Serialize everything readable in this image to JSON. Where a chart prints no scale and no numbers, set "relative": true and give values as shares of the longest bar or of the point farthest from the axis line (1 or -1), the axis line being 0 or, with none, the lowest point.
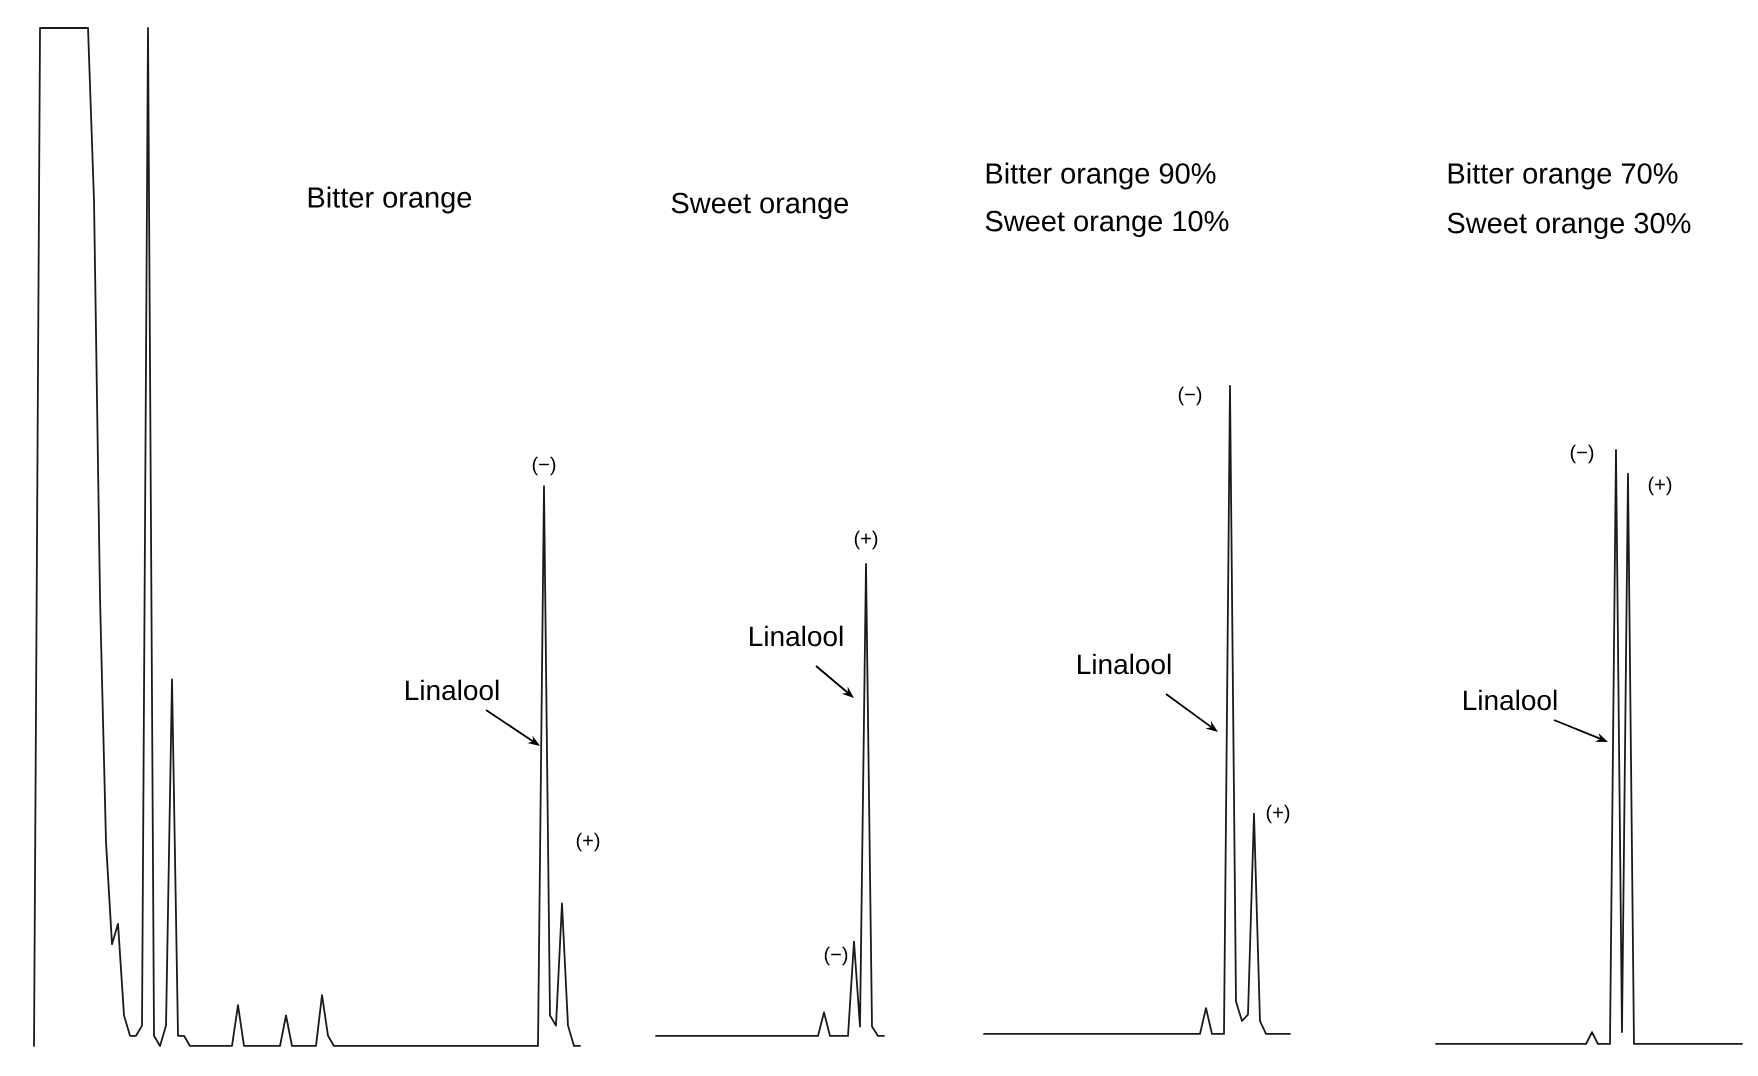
{
  "chart_data": [
    {
      "type": "line",
      "relative": true,
      "title": "Bitter orange",
      "categories": [
        null,
        null,
        null,
        null,
        null,
        null,
        null,
        null,
        null,
        null,
        null,
        null,
        null,
        null,
        null,
        null,
        null,
        null,
        null,
        null,
        null,
        null,
        null,
        null,
        null,
        null,
        null,
        null,
        null,
        null,
        null,
        null,
        null,
        null,
        null,
        null,
        null,
        null,
        null,
        null,
        null,
        null,
        null,
        null,
        null,
        null,
        null,
        null,
        null,
        null,
        null,
        null,
        null,
        null,
        null,
        null,
        null,
        null,
        null,
        null,
        null,
        null,
        null,
        null,
        null,
        null,
        null,
        null,
        null,
        null,
        null,
        null,
        null,
        null,
        null,
        null,
        null,
        null,
        null,
        null,
        null,
        null,
        null,
        null,
        null,
        null,
        null,
        null,
        null,
        null,
        null,
        null
      ],
      "series": [
        {
          "color": "#1a1a1a",
          "values": [
            0,
            1,
            1,
            1,
            1,
            1,
            1,
            1,
            1,
            1,
            0.83,
            0.44,
            0.2,
            0.1,
            0.12,
            0.03,
            0.01,
            0.01,
            0.02,
            1,
            0.01,
            0,
            0.02,
            0.36,
            0.01,
            0.01,
            0,
            0,
            0,
            0,
            0,
            0,
            0,
            0,
            0.04,
            0,
            0,
            0,
            0,
            0,
            0,
            0,
            0.03,
            0,
            0,
            0,
            0,
            0,
            0.05,
            0.01,
            0,
            0,
            0,
            0,
            0,
            0,
            0,
            0,
            0,
            0,
            0,
            0,
            0,
            0,
            0,
            0,
            0,
            0,
            0,
            0,
            0,
            0,
            0,
            0,
            0,
            0,
            0,
            0,
            0,
            0,
            0,
            0,
            0,
            0,
            0,
            0.55,
            0.03,
            0.02,
            0.14,
            0.02,
            0,
            0
          ]
        }
      ],
      "annotations": [
        "Linalool",
        "(−)",
        "(+)"
      ]
    },
    {
      "type": "line",
      "relative": true,
      "title": "Sweet orange",
      "categories": [
        null,
        null,
        null,
        null,
        null,
        null,
        null,
        null,
        null,
        null,
        null,
        null,
        null,
        null,
        null,
        null,
        null,
        null,
        null,
        null,
        null,
        null,
        null,
        null,
        null,
        null,
        null,
        null,
        null,
        null,
        null,
        null,
        null,
        null,
        null,
        null,
        null,
        null,
        null
      ],
      "series": [
        {
          "color": "#1a1a1a",
          "values": [
            0,
            0,
            0,
            0,
            0,
            0,
            0,
            0,
            0,
            0,
            0,
            0,
            0,
            0,
            0,
            0,
            0,
            0,
            0,
            0,
            0,
            0,
            0,
            0,
            0,
            0,
            0,
            0,
            0.05,
            0,
            0,
            0,
            0,
            0.2,
            0.02,
            1,
            0.02,
            0,
            0
          ]
        }
      ],
      "annotations": [
        "Linalool",
        "(−)",
        "(+)"
      ]
    },
    {
      "type": "line",
      "relative": true,
      "title": "Bitter orange 90%",
      "subtitle": "Sweet orange 10%",
      "categories": [
        null,
        null,
        null,
        null,
        null,
        null,
        null,
        null,
        null,
        null,
        null,
        null,
        null,
        null,
        null,
        null,
        null,
        null,
        null,
        null,
        null,
        null,
        null,
        null,
        null,
        null,
        null,
        null,
        null,
        null,
        null,
        null,
        null,
        null,
        null,
        null,
        null,
        null,
        null,
        null,
        null,
        null,
        null,
        null,
        null,
        null,
        null,
        null,
        null,
        null,
        null,
        null
      ],
      "series": [
        {
          "color": "#1a1a1a",
          "values": [
            0,
            0,
            0,
            0,
            0,
            0,
            0,
            0,
            0,
            0,
            0,
            0,
            0,
            0,
            0,
            0,
            0,
            0,
            0,
            0,
            0,
            0,
            0,
            0,
            0,
            0,
            0,
            0,
            0,
            0,
            0,
            0,
            0,
            0,
            0,
            0,
            0,
            0.04,
            0,
            0,
            0,
            1,
            0.05,
            0.02,
            0.03,
            0.34,
            0.02,
            0,
            0,
            0,
            0,
            0
          ]
        }
      ],
      "annotations": [
        "Linalool",
        "(−)",
        "(+)"
      ]
    },
    {
      "type": "line",
      "relative": true,
      "title": "Bitter orange 70%",
      "subtitle": "Sweet orange 30%",
      "categories": [
        null,
        null,
        null,
        null,
        null,
        null,
        null,
        null,
        null,
        null,
        null,
        null,
        null,
        null,
        null,
        null,
        null,
        null,
        null,
        null,
        null,
        null,
        null,
        null,
        null,
        null,
        null,
        null,
        null,
        null,
        null,
        null,
        null,
        null,
        null,
        null,
        null,
        null,
        null,
        null,
        null,
        null,
        null,
        null,
        null,
        null,
        null,
        null,
        null,
        null,
        null,
        null
      ],
      "series": [
        {
          "color": "#1a1a1a",
          "values": [
            0,
            0,
            0,
            0,
            0,
            0,
            0,
            0,
            0,
            0,
            0,
            0,
            0,
            0,
            0,
            0,
            0,
            0,
            0,
            0,
            0,
            0,
            0,
            0,
            0,
            0,
            0.02,
            0,
            0,
            0,
            1,
            0.02,
            0.96,
            0,
            0,
            0,
            0,
            0,
            0,
            0,
            0,
            0,
            0,
            0,
            0,
            0,
            0,
            0,
            0,
            0,
            0,
            0
          ]
        }
      ],
      "annotations": [
        "Linalool",
        "(−)",
        "(+)"
      ]
    }
  ]
}
